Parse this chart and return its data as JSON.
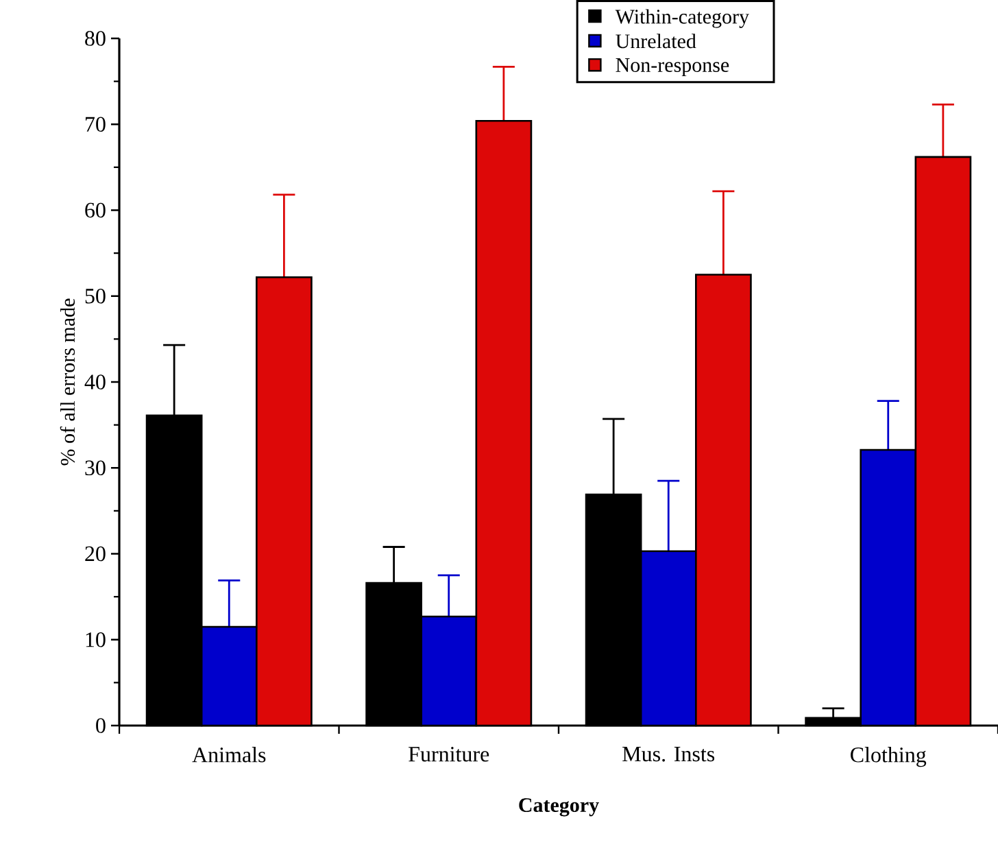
{
  "chart_data": {
    "type": "bar",
    "xlabel": "Category",
    "ylabel": "% of all errors made",
    "categories": [
      "Animals",
      "Furniture",
      "Mus. Insts",
      "Clothing"
    ],
    "series": [
      {
        "name": "Within-category",
        "color": "#000000",
        "values": [
          36.1,
          16.6,
          26.9,
          0.9
        ],
        "errors": [
          [
            36.1,
            44.3
          ],
          [
            16.6,
            20.8
          ],
          [
            26.9,
            35.7
          ],
          [
            0.9,
            2.0
          ]
        ]
      },
      {
        "name": "Unrelated",
        "color": "#0000cc",
        "values": [
          11.5,
          12.7,
          20.3,
          32.1
        ],
        "errors": [
          [
            11.5,
            16.9
          ],
          [
            12.7,
            17.5
          ],
          [
            20.3,
            28.5
          ],
          [
            32.1,
            37.8
          ]
        ]
      },
      {
        "name": "Non-response",
        "color": "#dd0808",
        "values": [
          52.2,
          70.4,
          52.5,
          66.2
        ],
        "errors": [
          [
            52.2,
            61.8
          ],
          [
            70.4,
            76.7
          ],
          [
            52.5,
            62.2
          ],
          [
            66.2,
            72.3
          ]
        ]
      }
    ],
    "ylim": [
      0,
      80
    ],
    "yticks": [
      0,
      10,
      20,
      30,
      40,
      50,
      60,
      70,
      80
    ],
    "legend": "top right",
    "grid": false
  }
}
